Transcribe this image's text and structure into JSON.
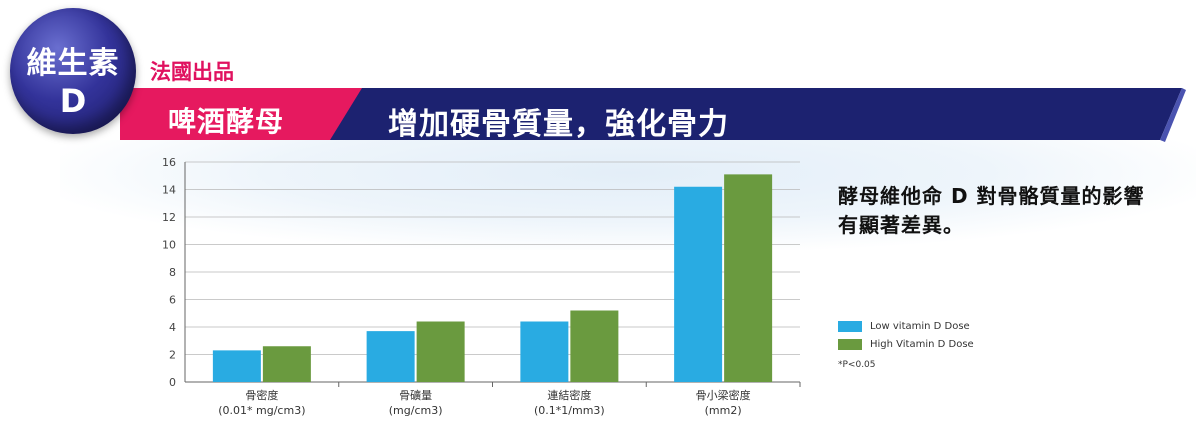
{
  "badge": {
    "line1": "維生素",
    "line2": "D"
  },
  "origin": "法國出品",
  "product": "啤酒酵母",
  "headline": "增加硬骨質量，強化骨力",
  "side_text": "酵母維他命 D 對骨骼質量的影響有顯著差異。",
  "footnote": "*P<0.05",
  "colors": {
    "low": "#29abe2",
    "high": "#6a9a3f",
    "banner": "#1c2270",
    "accent": "#e6195f"
  },
  "chart_data": {
    "type": "bar",
    "categories": [
      [
        "骨密度",
        "(0.01* mg/cm3)"
      ],
      [
        "骨礦量",
        "(mg/cm3)"
      ],
      [
        "連結密度",
        "(0.1*1/mm3)"
      ],
      [
        "骨小梁密度",
        "(mm2)"
      ]
    ],
    "series": [
      {
        "name": "Low vitamin D Dose",
        "values": [
          2.3,
          3.7,
          4.4,
          14.2
        ]
      },
      {
        "name": "High Vitamin D Dose",
        "values": [
          2.6,
          4.4,
          5.2,
          15.1
        ]
      }
    ],
    "ylim": [
      0,
      16
    ],
    "yticks": [
      "0",
      "2",
      "4",
      "6",
      "8",
      "10",
      "12",
      "14",
      "16"
    ],
    "grid": true,
    "legend": "right"
  }
}
